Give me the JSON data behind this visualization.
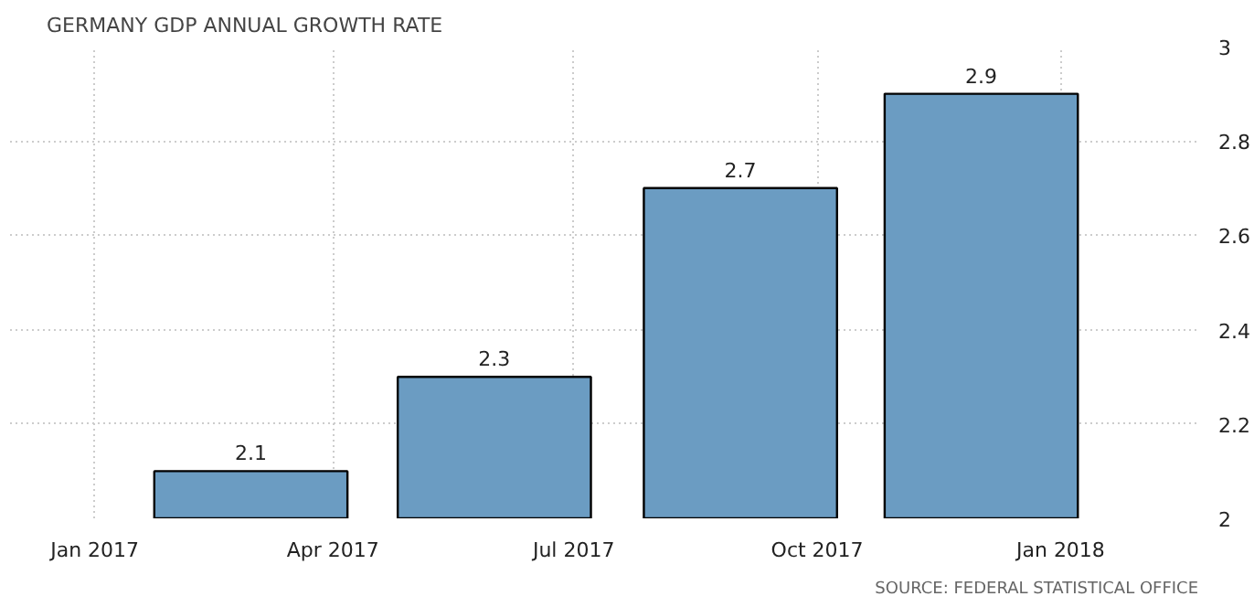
{
  "chart_data": {
    "type": "bar",
    "title": "GERMANY GDP ANNUAL GROWTH RATE",
    "x": [
      "2017-03-01",
      "2017-06-01",
      "2017-09-02",
      "2017-12-02"
    ],
    "values": [
      2.1,
      2.3,
      2.7,
      2.9
    ],
    "color": "#6b9cc2",
    "data_labels": true,
    "xlim": [
      "2016-11-30",
      "2018-02-22"
    ],
    "xticks": [
      {
        "value": "2017-01-01",
        "label": "Jan 2017"
      },
      {
        "value": "2017-04-01",
        "label": "Apr 2017"
      },
      {
        "value": "2017-07-01",
        "label": "Jul 2017"
      },
      {
        "value": "2017-10-01",
        "label": "Oct 2017"
      },
      {
        "value": "2018-01-01",
        "label": "Jan 2018"
      }
    ],
    "ylim": [
      2,
      3
    ],
    "yticks": [
      2,
      2.2,
      2.4,
      2.6,
      2.8,
      3
    ],
    "grid": true,
    "annotations": [
      "SOURCE: FEDERAL STATISTICAL OFFICE"
    ]
  }
}
